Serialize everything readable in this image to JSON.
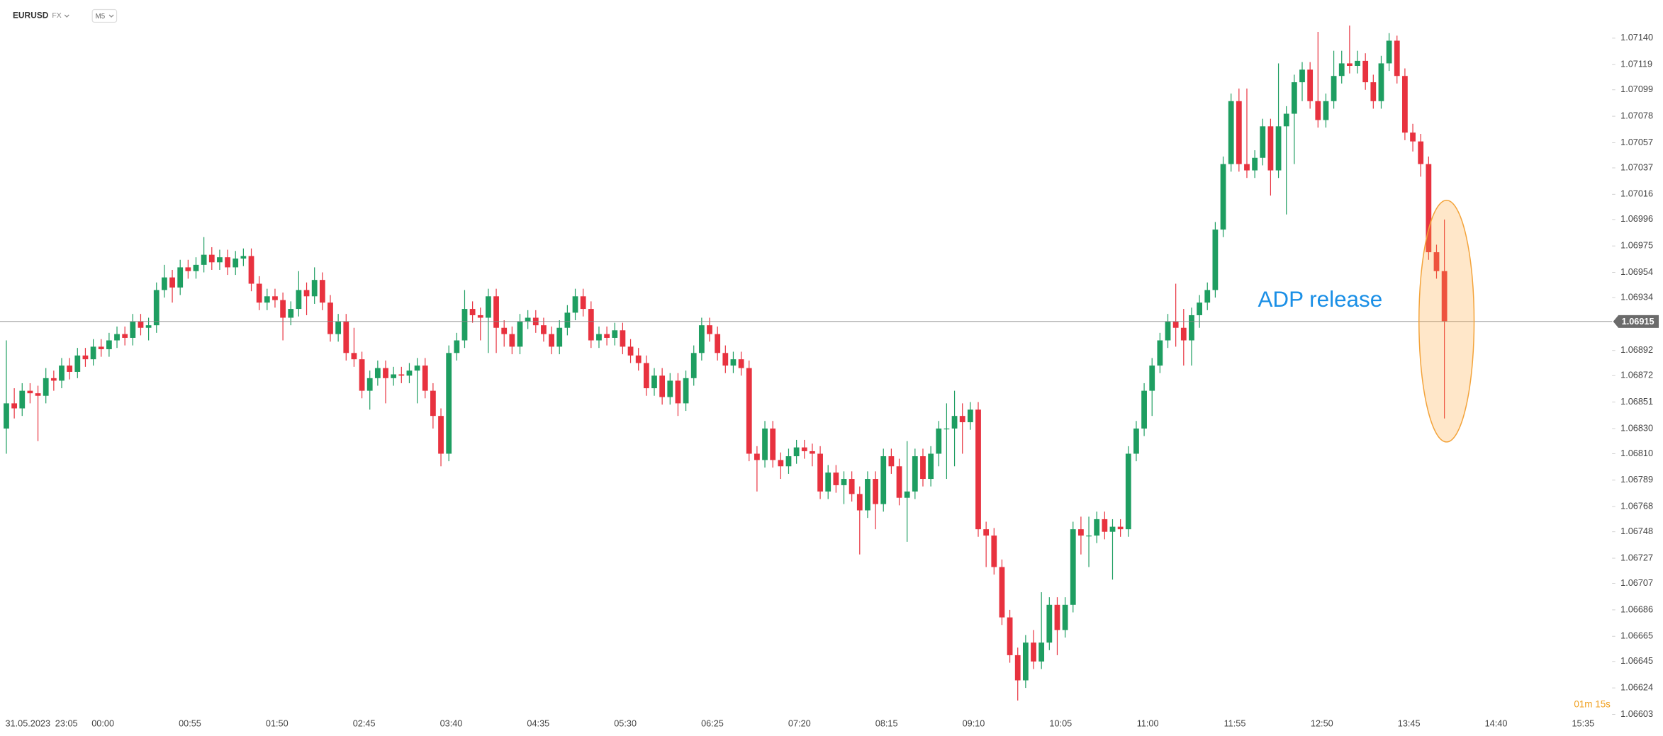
{
  "toolbar": {
    "symbol": "EURUSD",
    "market": "FX",
    "timeframe": "M5"
  },
  "chart_data": {
    "type": "candlestick",
    "annotation": "ADP release",
    "countdown": "01m 15s",
    "date": "31.05.2023",
    "start_time": "23:05",
    "xtick_labels": [
      "00:00",
      "00:55",
      "01:50",
      "02:45",
      "03:40",
      "04:35",
      "05:30",
      "06:25",
      "07:20",
      "08:15",
      "09:10",
      "10:05",
      "11:00",
      "11:55",
      "12:50",
      "13:45",
      "14:40",
      "15:35"
    ],
    "ylim": [
      1.06603,
      1.0714
    ],
    "yticks": [
      {
        "value": 1.0714,
        "label": "1.07140"
      },
      1.07119,
      1.07099,
      1.07078,
      1.07057,
      1.07037,
      1.07016,
      1.06996,
      1.06975,
      1.06954,
      1.06934,
      1.06892,
      1.06872,
      1.06851,
      {
        "value": 1.0683,
        "label": "1.06830"
      },
      {
        "value": 1.0681,
        "label": "1.06810"
      },
      1.06789,
      1.06768,
      1.06748,
      1.06727,
      1.06707,
      1.06686,
      1.06665,
      1.06645,
      1.06624,
      1.06603
    ],
    "up_color": "#1e9e61",
    "down_color": "#e8323f",
    "open": [
      1.0683,
      1.0685,
      1.06846,
      1.0686,
      1.06858,
      1.06856,
      1.0687,
      1.06868,
      1.0688,
      1.06875,
      1.06888,
      1.06885,
      1.06895,
      1.06893,
      1.069,
      1.06905,
      1.06902,
      1.06915,
      1.0691,
      1.06912,
      1.0694,
      1.0695,
      1.06942,
      1.06958,
      1.06955,
      1.0696,
      1.06968,
      1.06962,
      1.06966,
      1.06958,
      1.06965,
      1.06967,
      1.06945,
      1.0693,
      1.06935,
      1.06932,
      1.06918,
      1.06925,
      1.0694,
      1.06935,
      1.06948,
      1.0693,
      1.06905,
      1.06915,
      1.0689,
      1.06885,
      1.0686,
      1.0687,
      1.06878,
      1.0687,
      1.06873,
      1.06872,
      1.06876,
      1.0688,
      1.0686,
      1.0684,
      1.0681,
      1.0689,
      1.069,
      1.06925,
      1.0692,
      1.06918,
      1.06935,
      1.0691,
      1.06905,
      1.06895,
      1.06915,
      1.06918,
      1.06912,
      1.06905,
      1.06895,
      1.0691,
      1.06922,
      1.06935,
      1.06925,
      1.069,
      1.06905,
      1.06902,
      1.06908,
      1.06895,
      1.06888,
      1.06882,
      1.06862,
      1.06872,
      1.06855,
      1.06868,
      1.0685,
      1.0687,
      1.0689,
      1.06912,
      1.06905,
      1.0689,
      1.0688,
      1.06885,
      1.06878,
      1.0681,
      1.06805,
      1.0683,
      1.06805,
      1.068,
      1.06808,
      1.06815,
      1.06812,
      1.0681,
      1.0678,
      1.06795,
      1.06785,
      1.0679,
      1.06778,
      1.06765,
      1.0679,
      1.0677,
      1.06808,
      1.068,
      1.06775,
      1.0678,
      1.06808,
      1.0679,
      1.0681,
      1.0683,
      1.0683,
      1.0684,
      1.06835,
      1.06845,
      1.0675,
      1.06745,
      1.0672,
      1.0668,
      1.0665,
      1.0663,
      1.0666,
      1.06645,
      1.0666,
      1.0669,
      1.0667,
      1.0669,
      1.0675,
      1.06745,
      1.06745,
      1.06758,
      1.06748,
      1.06752,
      1.0675,
      1.0681,
      1.0683,
      1.0686,
      1.0688,
      1.069,
      1.06915,
      1.0691,
      1.069,
      1.0692,
      1.0693,
      1.0694,
      1.06988,
      1.0704,
      1.0709,
      1.0704,
      1.07035,
      1.07045,
      1.0707,
      1.07035,
      1.0707,
      1.0708,
      1.07105,
      1.07115,
      1.0709,
      1.07075,
      1.0709,
      1.0711,
      1.0712,
      1.07118,
      1.07122,
      1.07105,
      1.0709,
      1.0712,
      1.07138,
      1.0711,
      1.07065,
      1.07058,
      1.0704,
      1.0697,
      1.06955
    ],
    "high": [
      1.069,
      1.06862,
      1.06866,
      1.06866,
      1.06864,
      1.06878,
      1.06876,
      1.06886,
      1.06886,
      1.06894,
      1.06894,
      1.06901,
      1.06901,
      1.06906,
      1.06911,
      1.06911,
      1.06921,
      1.06921,
      1.06918,
      1.06946,
      1.0696,
      1.06956,
      1.06964,
      1.06964,
      1.06966,
      1.06982,
      1.06974,
      1.06972,
      1.06972,
      1.06971,
      1.06973,
      1.06973,
      1.06951,
      1.06941,
      1.06941,
      1.06938,
      1.06931,
      1.06955,
      1.06946,
      1.06958,
      1.06954,
      1.06936,
      1.06921,
      1.06921,
      1.0691,
      1.06891,
      1.06876,
      1.06884,
      1.06884,
      1.06879,
      1.06879,
      1.06882,
      1.06886,
      1.06886,
      1.06866,
      1.06846,
      1.06896,
      1.06906,
      1.0694,
      1.06931,
      1.06926,
      1.06941,
      1.06941,
      1.06916,
      1.06911,
      1.06921,
      1.06924,
      1.06924,
      1.06918,
      1.06911,
      1.06916,
      1.06928,
      1.06941,
      1.06941,
      1.06931,
      1.06911,
      1.06911,
      1.06914,
      1.06914,
      1.06901,
      1.06894,
      1.06888,
      1.06878,
      1.06878,
      1.06874,
      1.06874,
      1.06876,
      1.06896,
      1.06918,
      1.06918,
      1.06911,
      1.06896,
      1.06891,
      1.06891,
      1.06884,
      1.06816,
      1.06836,
      1.06836,
      1.06811,
      1.06814,
      1.06821,
      1.06821,
      1.06818,
      1.06816,
      1.06801,
      1.06801,
      1.06796,
      1.06796,
      1.06784,
      1.06796,
      1.06796,
      1.06814,
      1.06814,
      1.06806,
      1.0682,
      1.06814,
      1.06814,
      1.06816,
      1.06836,
      1.0685,
      1.0686,
      1.0685,
      1.06851,
      1.06851,
      1.06756,
      1.06751,
      1.06726,
      1.06686,
      1.06656,
      1.06666,
      1.0667,
      1.067,
      1.06696,
      1.06696,
      1.06696,
      1.06756,
      1.0676,
      1.0676,
      1.06764,
      1.06764,
      1.06758,
      1.06758,
      1.06816,
      1.06836,
      1.06866,
      1.06886,
      1.06906,
      1.06921,
      1.06945,
      1.06925,
      1.06926,
      1.06936,
      1.06946,
      1.06994,
      1.07046,
      1.07096,
      1.071,
      1.071,
      1.07051,
      1.07076,
      1.07076,
      1.0712,
      1.07086,
      1.07111,
      1.07121,
      1.07121,
      1.07145,
      1.07096,
      1.0713,
      1.0713,
      1.0715,
      1.0713,
      1.07128,
      1.07111,
      1.07126,
      1.07144,
      1.07142,
      1.07116,
      1.07072,
      1.07064,
      1.07046,
      1.06976,
      1.06996
    ],
    "low": [
      1.0681,
      1.06838,
      1.0684,
      1.0685,
      1.0682,
      1.0685,
      1.0686,
      1.06862,
      1.06869,
      1.0687,
      1.06879,
      1.0688,
      1.06887,
      1.06887,
      1.06894,
      1.06896,
      1.06896,
      1.06904,
      1.069,
      1.06906,
      1.06934,
      1.0693,
      1.06936,
      1.06949,
      1.06949,
      1.06954,
      1.06956,
      1.06956,
      1.06952,
      1.06952,
      1.06959,
      1.06939,
      1.06924,
      1.06924,
      1.06926,
      1.069,
      1.06912,
      1.06919,
      1.0692,
      1.06929,
      1.06924,
      1.06899,
      1.06899,
      1.06884,
      1.06879,
      1.06854,
      1.06845,
      1.06864,
      1.0685,
      1.06864,
      1.06866,
      1.06866,
      1.0685,
      1.06854,
      1.0683,
      1.068,
      1.06804,
      1.06884,
      1.06894,
      1.06914,
      1.069,
      1.0689,
      1.0689,
      1.06895,
      1.06889,
      1.06889,
      1.06909,
      1.06906,
      1.06899,
      1.06889,
      1.06889,
      1.06904,
      1.06916,
      1.06919,
      1.06894,
      1.06894,
      1.06896,
      1.06896,
      1.06889,
      1.06882,
      1.06876,
      1.06856,
      1.06856,
      1.06849,
      1.06849,
      1.0684,
      1.06844,
      1.06864,
      1.06884,
      1.06899,
      1.06884,
      1.06874,
      1.06874,
      1.06872,
      1.06804,
      1.0678,
      1.06799,
      1.06799,
      1.0679,
      1.06794,
      1.06802,
      1.06806,
      1.068,
      1.06774,
      1.06774,
      1.06779,
      1.0677,
      1.06772,
      1.0673,
      1.06759,
      1.0675,
      1.06764,
      1.06794,
      1.06769,
      1.0674,
      1.06774,
      1.06784,
      1.06784,
      1.068,
      1.0679,
      1.068,
      1.0681,
      1.06829,
      1.06744,
      1.0672,
      1.06714,
      1.06674,
      1.06644,
      1.06614,
      1.06624,
      1.06639,
      1.06639,
      1.06654,
      1.0665,
      1.06664,
      1.06684,
      1.0673,
      1.0672,
      1.06739,
      1.06742,
      1.0671,
      1.06744,
      1.06744,
      1.06804,
      1.06824,
      1.0684,
      1.06874,
      1.06894,
      1.06895,
      1.0688,
      1.0688,
      1.0691,
      1.06924,
      1.06934,
      1.06982,
      1.07034,
      1.07034,
      1.07029,
      1.07029,
      1.07039,
      1.07015,
      1.07029,
      1.07,
      1.0704,
      1.0709,
      1.07084,
      1.07069,
      1.07069,
      1.07084,
      1.07104,
      1.07112,
      1.07112,
      1.07099,
      1.07084,
      1.07084,
      1.07114,
      1.07104,
      1.07059,
      1.0705,
      1.0703,
      1.06964,
      1.06949,
      1.06838
    ],
    "close": [
      1.0685,
      1.06846,
      1.0686,
      1.06858,
      1.06856,
      1.0687,
      1.06868,
      1.0688,
      1.06875,
      1.06888,
      1.06885,
      1.06895,
      1.06893,
      1.069,
      1.06905,
      1.06902,
      1.06915,
      1.0691,
      1.06912,
      1.0694,
      1.0695,
      1.06942,
      1.06958,
      1.06955,
      1.0696,
      1.06968,
      1.06962,
      1.06966,
      1.06958,
      1.06965,
      1.06967,
      1.06945,
      1.0693,
      1.06935,
      1.06932,
      1.06918,
      1.06925,
      1.0694,
      1.06935,
      1.06948,
      1.0693,
      1.06905,
      1.06915,
      1.0689,
      1.06885,
      1.0686,
      1.0687,
      1.06878,
      1.0687,
      1.06873,
      1.06872,
      1.06876,
      1.0688,
      1.0686,
      1.0684,
      1.0681,
      1.0689,
      1.069,
      1.06925,
      1.0692,
      1.06918,
      1.06935,
      1.0691,
      1.06905,
      1.06895,
      1.06915,
      1.06918,
      1.06912,
      1.06905,
      1.06895,
      1.0691,
      1.06922,
      1.06935,
      1.06925,
      1.069,
      1.06905,
      1.06902,
      1.06908,
      1.06895,
      1.06888,
      1.06882,
      1.06862,
      1.06872,
      1.06855,
      1.06868,
      1.0685,
      1.0687,
      1.0689,
      1.06912,
      1.06905,
      1.0689,
      1.0688,
      1.06885,
      1.06878,
      1.0681,
      1.06805,
      1.0683,
      1.06805,
      1.068,
      1.06808,
      1.06815,
      1.06812,
      1.0681,
      1.0678,
      1.06795,
      1.06785,
      1.0679,
      1.06778,
      1.06765,
      1.0679,
      1.0677,
      1.06808,
      1.068,
      1.06775,
      1.0678,
      1.06808,
      1.0679,
      1.0681,
      1.0683,
      1.0683,
      1.0684,
      1.06835,
      1.06845,
      1.0675,
      1.06745,
      1.0672,
      1.0668,
      1.0665,
      1.0663,
      1.0666,
      1.06645,
      1.0666,
      1.0669,
      1.0667,
      1.0669,
      1.0675,
      1.06745,
      1.06745,
      1.06758,
      1.06748,
      1.06752,
      1.0675,
      1.0681,
      1.0683,
      1.0686,
      1.0688,
      1.069,
      1.06915,
      1.0691,
      1.069,
      1.0692,
      1.0693,
      1.0694,
      1.06988,
      1.0704,
      1.0709,
      1.0704,
      1.07035,
      1.07045,
      1.0707,
      1.07035,
      1.0707,
      1.0708,
      1.07105,
      1.07115,
      1.0709,
      1.07075,
      1.0709,
      1.0711,
      1.0712,
      1.07118,
      1.07122,
      1.07105,
      1.0709,
      1.0712,
      1.07138,
      1.0711,
      1.07065,
      1.07058,
      1.0704,
      1.0697,
      1.06955,
      1.06915
    ]
  }
}
